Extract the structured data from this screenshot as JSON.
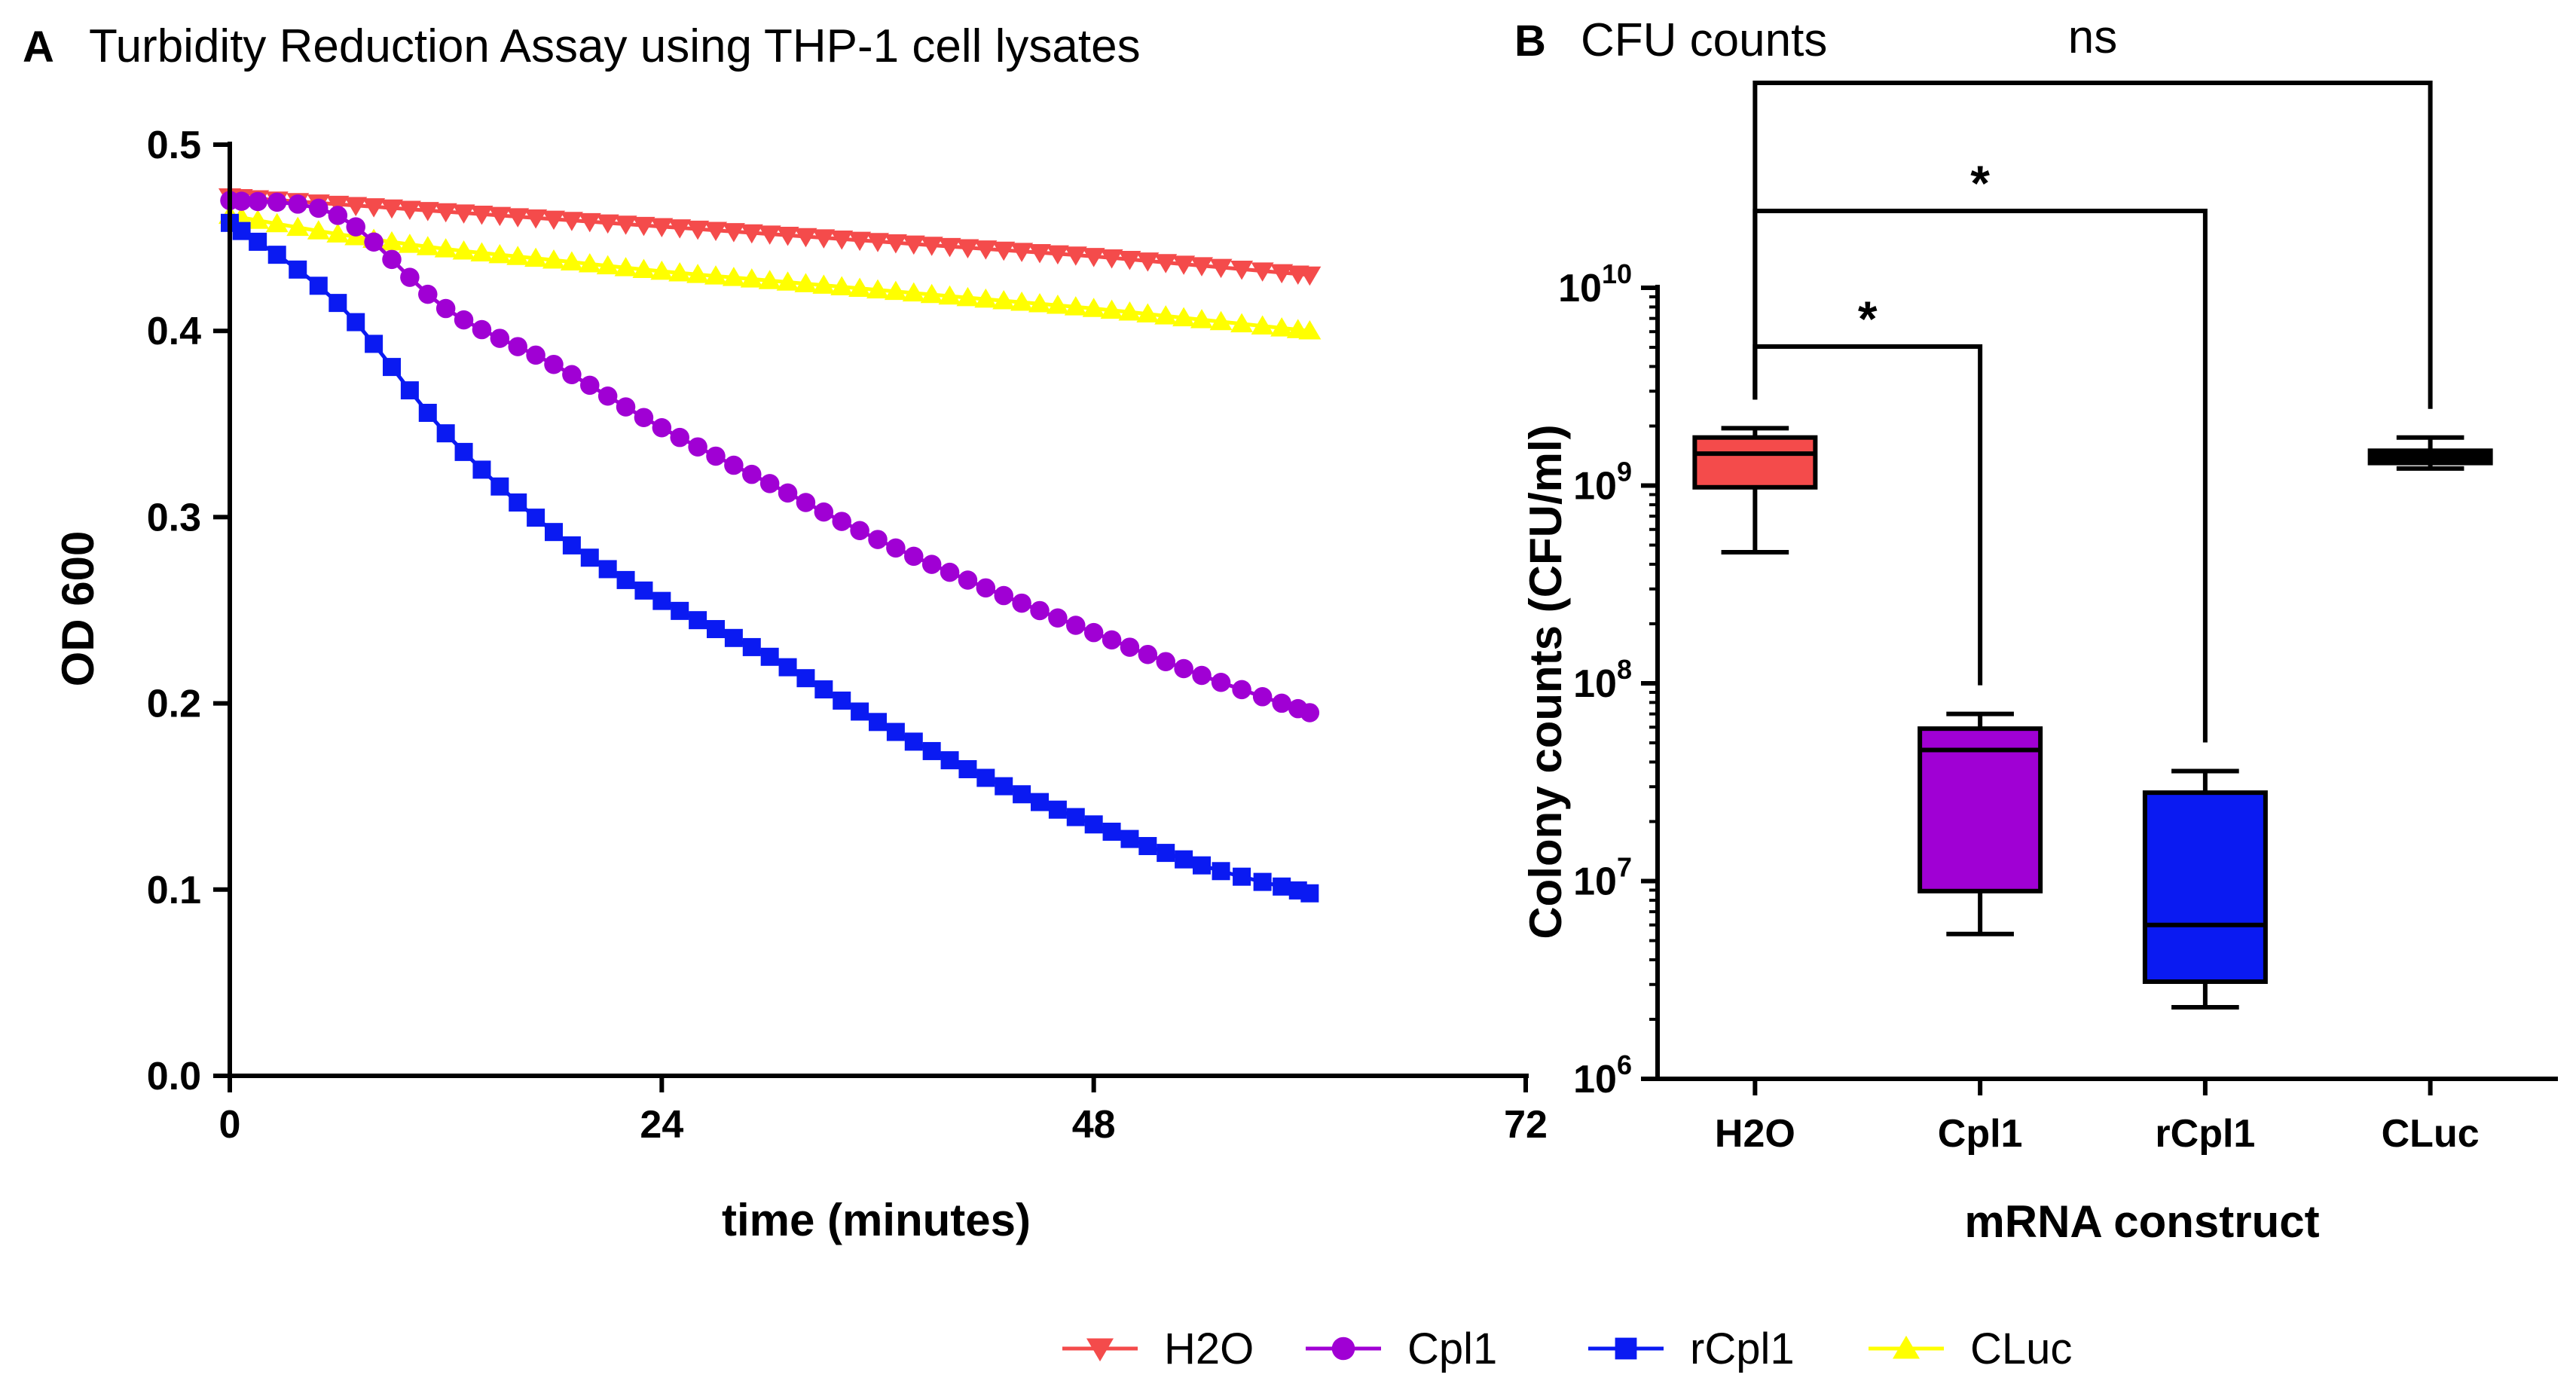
{
  "panel_a": {
    "letter": "A",
    "title": "Turbidity Reduction Assay using THP-1 cell lysates"
  },
  "panel_b": {
    "letter": "B",
    "title": "CFU counts"
  },
  "legend": [
    {
      "name": "H2O",
      "color": "#F44B4B",
      "marker": "triangle-down"
    },
    {
      "name": "Cpl1",
      "color": "#A000D4",
      "marker": "circle"
    },
    {
      "name": "rCpl1",
      "color": "#0A1AF2",
      "marker": "square"
    },
    {
      "name": "CLuc",
      "color": "#FFFF00",
      "marker": "triangle-up"
    }
  ],
  "chart_data": [
    {
      "type": "line",
      "title": "Turbidity Reduction Assay using THP-1 cell lysates",
      "xlabel": "time (minutes)",
      "ylabel": "OD 600",
      "xlim": [
        0,
        72
      ],
      "ylim": [
        0,
        0.5
      ],
      "xticks": [
        "0",
        "24",
        "48",
        "72"
      ],
      "yticks": [
        "0.0",
        "0.1",
        "0.2",
        "0.3",
        "0.4",
        "0.5"
      ],
      "x": [
        0,
        6,
        12,
        18,
        24,
        30,
        36,
        42,
        48,
        54,
        60
      ],
      "series": [
        {
          "name": "H2O",
          "color": "#F44B4B",
          "marker": "triangle-down",
          "values": [
            0.472,
            0.468,
            0.464,
            0.46,
            0.456,
            0.452,
            0.448,
            0.444,
            0.44,
            0.435,
            0.43
          ]
        },
        {
          "name": "Cpl1",
          "color": "#A000D4",
          "marker": "circle",
          "values": [
            0.47,
            0.462,
            0.412,
            0.382,
            0.348,
            0.318,
            0.288,
            0.262,
            0.238,
            0.215,
            0.195
          ]
        },
        {
          "name": "rCpl1",
          "color": "#0A1AF2",
          "marker": "square",
          "values": [
            0.458,
            0.415,
            0.345,
            0.292,
            0.255,
            0.225,
            0.19,
            0.16,
            0.135,
            0.113,
            0.098
          ]
        },
        {
          "name": "CLuc",
          "color": "#FFFF00",
          "marker": "triangle-up",
          "values": [
            0.462,
            0.452,
            0.444,
            0.438,
            0.432,
            0.427,
            0.422,
            0.417,
            0.412,
            0.406,
            0.4
          ]
        }
      ]
    },
    {
      "type": "box",
      "title": "CFU counts",
      "xlabel": "mRNA construct",
      "ylabel": "Colony counts (CFU/ml)",
      "yscale": "log",
      "ylim": [
        1000000.0,
        10000000000.0
      ],
      "yticks": [
        {
          "base": "10",
          "exp": "6",
          "value": 1000000.0
        },
        {
          "base": "10",
          "exp": "7",
          "value": 10000000.0
        },
        {
          "base": "10",
          "exp": "8",
          "value": 100000000.0
        },
        {
          "base": "10",
          "exp": "9",
          "value": 1000000000.0
        },
        {
          "base": "10",
          "exp": "10",
          "value": 10000000000.0
        }
      ],
      "categories": [
        "H2O",
        "Cpl1",
        "rCpl1",
        "CLuc"
      ],
      "boxes": [
        {
          "name": "H2O",
          "color": "#F44B4B",
          "min": 460000000.0,
          "q1": 980000000.0,
          "median": 1450000000.0,
          "q3": 1750000000.0,
          "max": 1950000000.0
        },
        {
          "name": "Cpl1",
          "color": "#A000D4",
          "min": 5400000.0,
          "q1": 8900000.0,
          "median": 46000000.0,
          "q3": 59000000.0,
          "max": 70000000.0
        },
        {
          "name": "rCpl1",
          "color": "#0A1AF2",
          "min": 2300000.0,
          "q1": 3100000.0,
          "median": 6000000.0,
          "q3": 28000000.0,
          "max": 36000000.0
        },
        {
          "name": "CLuc",
          "color": "#000000",
          "min": 1220000000.0,
          "q1": 1300000000.0,
          "median": 1420000000.0,
          "q3": 1500000000.0,
          "max": 1750000000.0
        }
      ],
      "significance": [
        {
          "from": "H2O",
          "to": "Cpl1",
          "label": "*"
        },
        {
          "from": "H2O",
          "to": "rCpl1",
          "label": "*"
        },
        {
          "from": "H2O",
          "to": "CLuc",
          "label": "ns"
        }
      ]
    }
  ]
}
